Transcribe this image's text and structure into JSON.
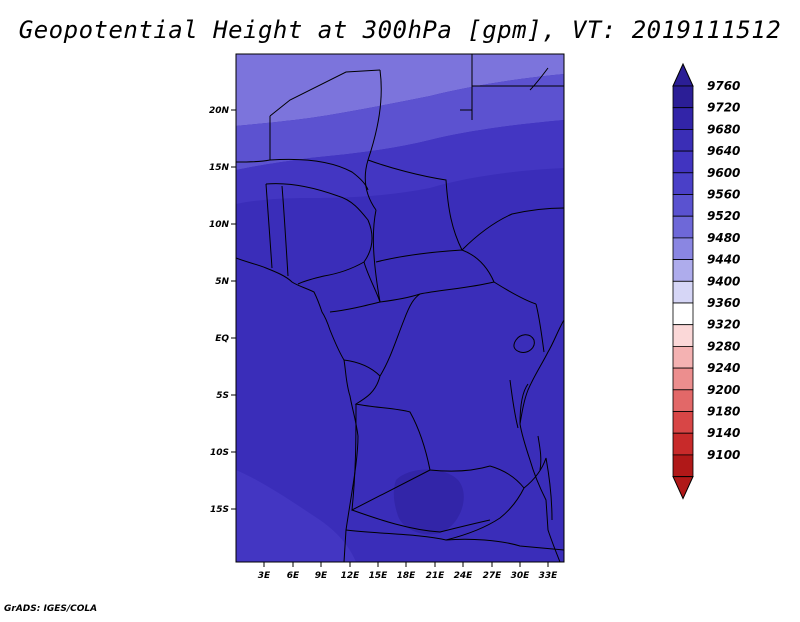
{
  "title": "Geopotential Height at 300hPa [gpm], VT: 2019111512",
  "credit": "GrADS: IGES/COLA",
  "map": {
    "lat_labels": [
      "20N",
      "15N",
      "10N",
      "5N",
      "EQ",
      "5S",
      "10S",
      "15S"
    ],
    "lon_labels": [
      "3E",
      "6E",
      "9E",
      "12E",
      "15E",
      "18E",
      "21E",
      "24E",
      "27E",
      "30E",
      "33E"
    ]
  },
  "colorbar": {
    "levels": [
      "9760",
      "9720",
      "9680",
      "9640",
      "9600",
      "9560",
      "9520",
      "9480",
      "9440",
      "9400",
      "9360",
      "9320",
      "9280",
      "9240",
      "9200",
      "9180",
      "9140",
      "9100"
    ],
    "colors": [
      "#2b1e96",
      "#3224a8",
      "#3a2eb6",
      "#4134c0",
      "#4a40c8",
      "#5a52d0",
      "#6e68d8",
      "#8a86e2",
      "#aeacec",
      "#d6d6f6",
      "#ffffff",
      "#fbd8d8",
      "#f4b2b2",
      "#ec8e8e",
      "#e26868",
      "#d84646",
      "#c82a2a",
      "#b01818"
    ]
  },
  "field_colors": {
    "north": "#7c74dc",
    "north_mid": "#5c52d0",
    "mid": "#4336c2",
    "main": "#3a2db9",
    "south_edge": "#4336c2",
    "low_pocket": "#3225a8"
  }
}
